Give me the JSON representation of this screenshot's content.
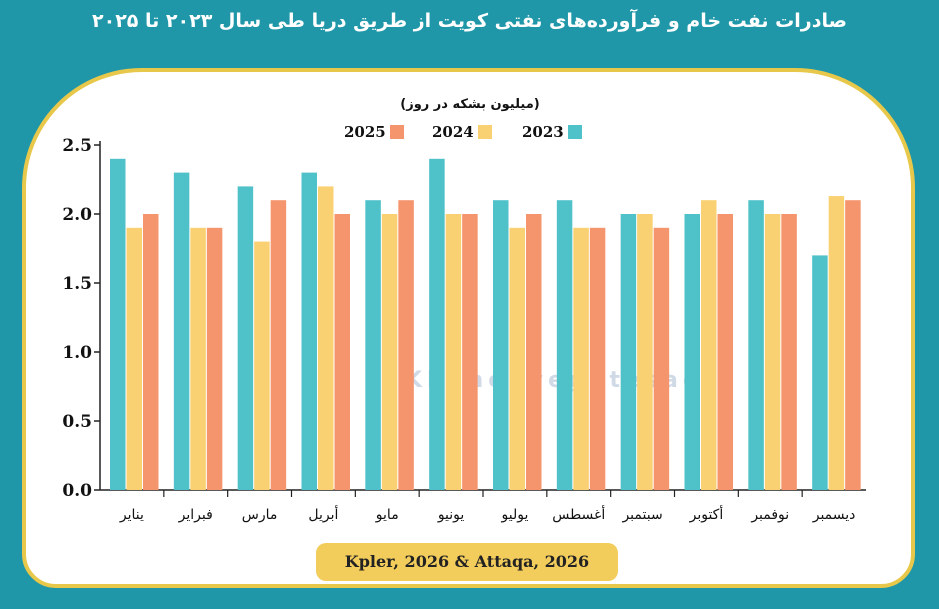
{
  "header": {
    "title": "صادرات نفت خام و فرآورده‌های نفتی کویت از طریق دریا طی سال ۲۰۲۳ تا ۲۰۲۵"
  },
  "watermark": {
    "text": "Khanehyeghtesad"
  },
  "footer": {
    "source": "Kpler, 2026 & Attaqa, 2026"
  },
  "colors": {
    "background": "#1f97a8",
    "frame": "#e8c84a",
    "footer": "#f2cd5c"
  },
  "chart_data": {
    "type": "bar",
    "unit_label": "(میلیون بشکه در روز)",
    "categories": [
      "ينایر",
      "فبرایر",
      "مارس",
      "أبريل",
      "مايو",
      "يونيو",
      "يوليو",
      "أغسطس",
      "سبتمبر",
      "أكتوبر",
      "نوفمبر",
      "ديسمبر"
    ],
    "series": [
      {
        "name": "2023",
        "color": "#4fc1c9",
        "values": [
          2.4,
          2.3,
          2.2,
          2.3,
          2.1,
          2.4,
          2.1,
          2.1,
          2.0,
          2.0,
          2.1,
          1.7
        ]
      },
      {
        "name": "2024",
        "color": "#f9d173",
        "values": [
          1.9,
          1.9,
          1.8,
          2.2,
          2.0,
          2.0,
          1.9,
          1.9,
          2.0,
          2.1,
          2.0,
          2.13
        ]
      },
      {
        "name": "2025",
        "color": "#f5956e",
        "values": [
          2.0,
          1.9,
          2.1,
          2.0,
          2.1,
          2.0,
          2.0,
          1.9,
          1.9,
          2.0,
          2.0,
          2.1
        ]
      }
    ],
    "yticks": [
      "0.0",
      "0.5",
      "1.0",
      "1.5",
      "2.0",
      "2.5"
    ],
    "ylim": [
      0,
      2.5
    ],
    "grid": false,
    "legend": "top-center"
  }
}
